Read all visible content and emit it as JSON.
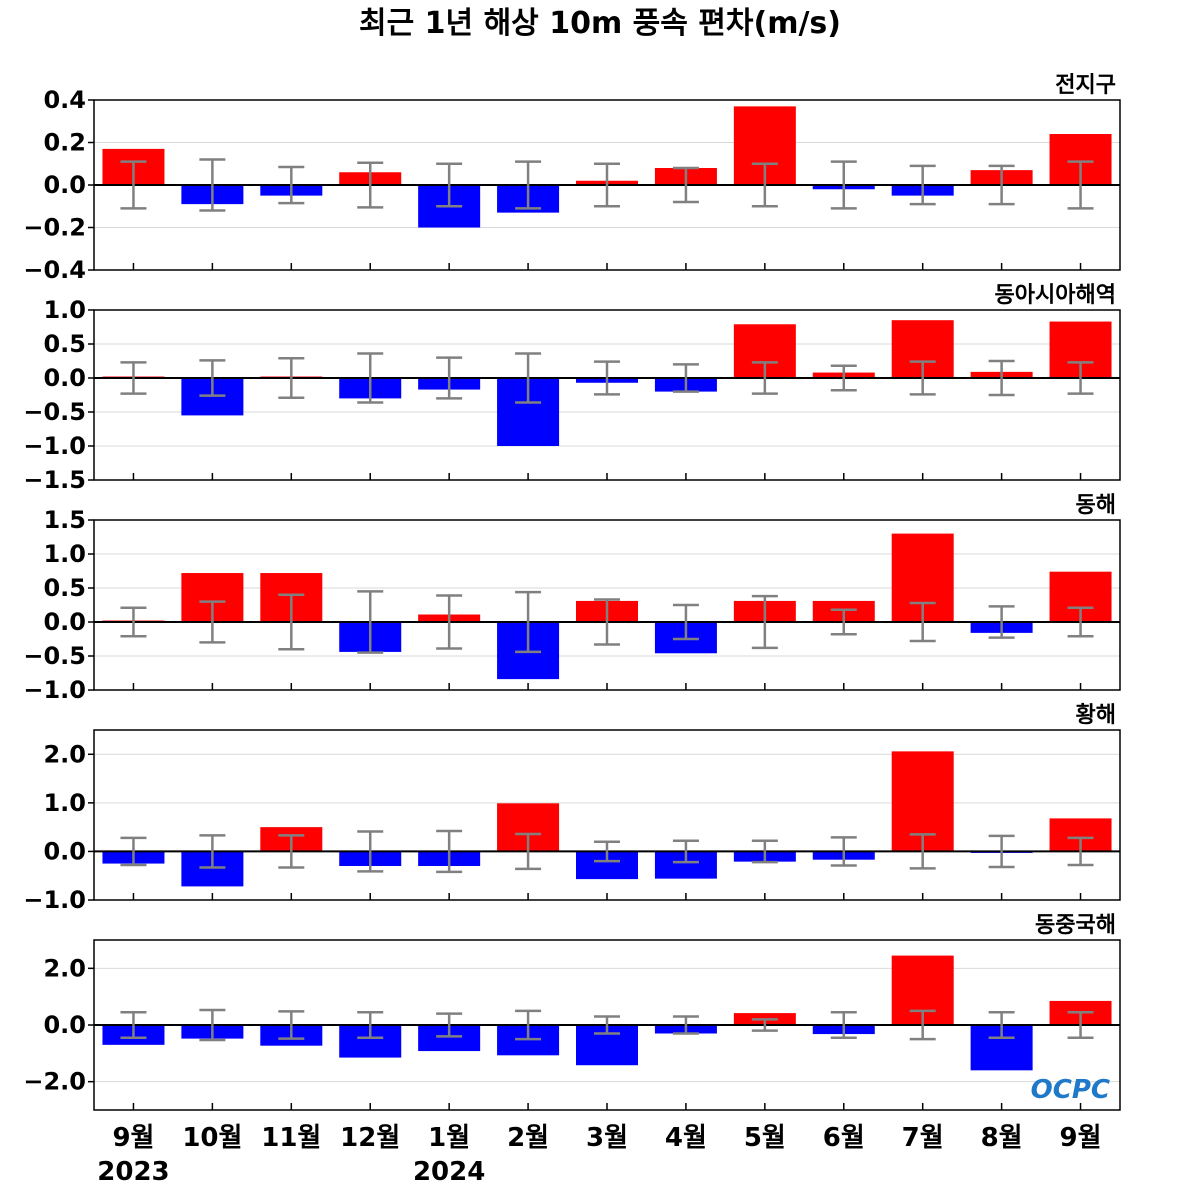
{
  "title": "최근 1년 해상 10m 풍속 편차(m/s)",
  "logo_text": "OCPC",
  "colors": {
    "positive": "#ff0000",
    "negative": "#0000ff",
    "errorbar": "#808080",
    "grid": "#d9d9d9",
    "zero_line": "#000000",
    "logo": "#1f78c8"
  },
  "chart_data": [
    {
      "type": "bar",
      "title": "전지구",
      "categories": [
        "9월",
        "10월",
        "11월",
        "12월",
        "1월",
        "2월",
        "3월",
        "4월",
        "5월",
        "6월",
        "7월",
        "8월",
        "9월"
      ],
      "values": [
        0.17,
        -0.09,
        -0.05,
        0.06,
        -0.2,
        -0.13,
        0.02,
        0.08,
        0.37,
        -0.02,
        -0.05,
        0.07,
        0.24
      ],
      "error_range": [
        0.11,
        0.12,
        0.085,
        0.105,
        0.1,
        0.11,
        0.1,
        0.08,
        0.1,
        0.11,
        0.09,
        0.09,
        0.11
      ],
      "ylim": [
        -0.4,
        0.4
      ],
      "yticks": [
        0.4,
        0.2,
        0.0,
        -0.2,
        -0.4
      ],
      "ytick_labels": [
        "0.4",
        "0.2",
        "0.0",
        "−0.2",
        "−0.4"
      ],
      "grid": true
    },
    {
      "type": "bar",
      "title": "동아시아해역",
      "categories": [
        "9월",
        "10월",
        "11월",
        "12월",
        "1월",
        "2월",
        "3월",
        "4월",
        "5월",
        "6월",
        "7월",
        "8월",
        "9월"
      ],
      "values": [
        0.0,
        -0.55,
        0.01,
        -0.3,
        -0.17,
        -1.0,
        -0.07,
        -0.2,
        0.79,
        0.08,
        0.85,
        0.09,
        0.83
      ],
      "error_range": [
        0.23,
        0.26,
        0.29,
        0.36,
        0.3,
        0.36,
        0.24,
        0.2,
        0.23,
        0.18,
        0.24,
        0.25,
        0.23
      ],
      "ylim": [
        -1.5,
        1.0
      ],
      "yticks": [
        1.0,
        0.5,
        0.0,
        -0.5,
        -1.0,
        -1.5
      ],
      "ytick_labels": [
        "1.0",
        "0.5",
        "0.0",
        "−0.5",
        "−1.0",
        "−1.5"
      ],
      "grid": true
    },
    {
      "type": "bar",
      "title": "동해",
      "categories": [
        "9월",
        "10월",
        "11월",
        "12월",
        "1월",
        "2월",
        "3월",
        "4월",
        "5월",
        "6월",
        "7월",
        "8월",
        "9월"
      ],
      "values": [
        0.0,
        0.72,
        0.72,
        -0.44,
        0.11,
        -0.84,
        0.31,
        -0.46,
        0.31,
        0.31,
        1.3,
        -0.16,
        0.74
      ],
      "error_range": [
        0.21,
        0.3,
        0.4,
        0.45,
        0.39,
        0.44,
        0.33,
        0.25,
        0.38,
        0.18,
        0.28,
        0.23,
        0.21
      ],
      "ylim": [
        -1.0,
        1.5
      ],
      "yticks": [
        1.5,
        1.0,
        0.5,
        0.0,
        -0.5,
        -1.0
      ],
      "ytick_labels": [
        "1.5",
        "1.0",
        "0.5",
        "0.0",
        "−0.5",
        "−1.0"
      ],
      "grid": true
    },
    {
      "type": "bar",
      "title": "황해",
      "categories": [
        "9월",
        "10월",
        "11월",
        "12월",
        "1월",
        "2월",
        "3월",
        "4월",
        "5월",
        "6월",
        "7월",
        "8월",
        "9월"
      ],
      "values": [
        -0.25,
        -0.72,
        0.5,
        -0.3,
        -0.3,
        0.99,
        -0.57,
        -0.56,
        -0.21,
        -0.17,
        2.06,
        -0.02,
        0.68
      ],
      "error_range": [
        0.28,
        0.33,
        0.33,
        0.41,
        0.42,
        0.36,
        0.2,
        0.22,
        0.22,
        0.29,
        0.35,
        0.32,
        0.28
      ],
      "ylim": [
        -1.0,
        2.5
      ],
      "yticks": [
        2.0,
        1.0,
        0.0,
        -1.0
      ],
      "ytick_labels": [
        "2.0",
        "1.0",
        "0.0",
        "−1.0"
      ],
      "grid": true
    },
    {
      "type": "bar",
      "title": "동중국해",
      "categories": [
        "9월",
        "10월",
        "11월",
        "12월",
        "1월",
        "2월",
        "3월",
        "4월",
        "5월",
        "6월",
        "7월",
        "8월",
        "9월"
      ],
      "values": [
        -0.7,
        -0.48,
        -0.73,
        -1.15,
        -0.92,
        -1.07,
        -1.42,
        -0.3,
        0.42,
        -0.32,
        2.45,
        -1.6,
        0.85
      ],
      "error_range": [
        0.45,
        0.53,
        0.48,
        0.45,
        0.4,
        0.5,
        0.3,
        0.3,
        0.2,
        0.45,
        0.5,
        0.45,
        0.45
      ],
      "ylim": [
        -3.0,
        3.0
      ],
      "yticks": [
        2.0,
        0.0,
        -2.0
      ],
      "ytick_labels": [
        "2.0",
        "0.0",
        "−2.0"
      ],
      "grid": true
    }
  ],
  "x_axis": {
    "labels": [
      "9월",
      "10월",
      "11월",
      "12월",
      "1월",
      "2월",
      "3월",
      "4월",
      "5월",
      "6월",
      "7월",
      "8월",
      "9월"
    ],
    "years": [
      {
        "label": "2023",
        "index": 0
      },
      {
        "label": "2024",
        "index": 4
      }
    ]
  }
}
